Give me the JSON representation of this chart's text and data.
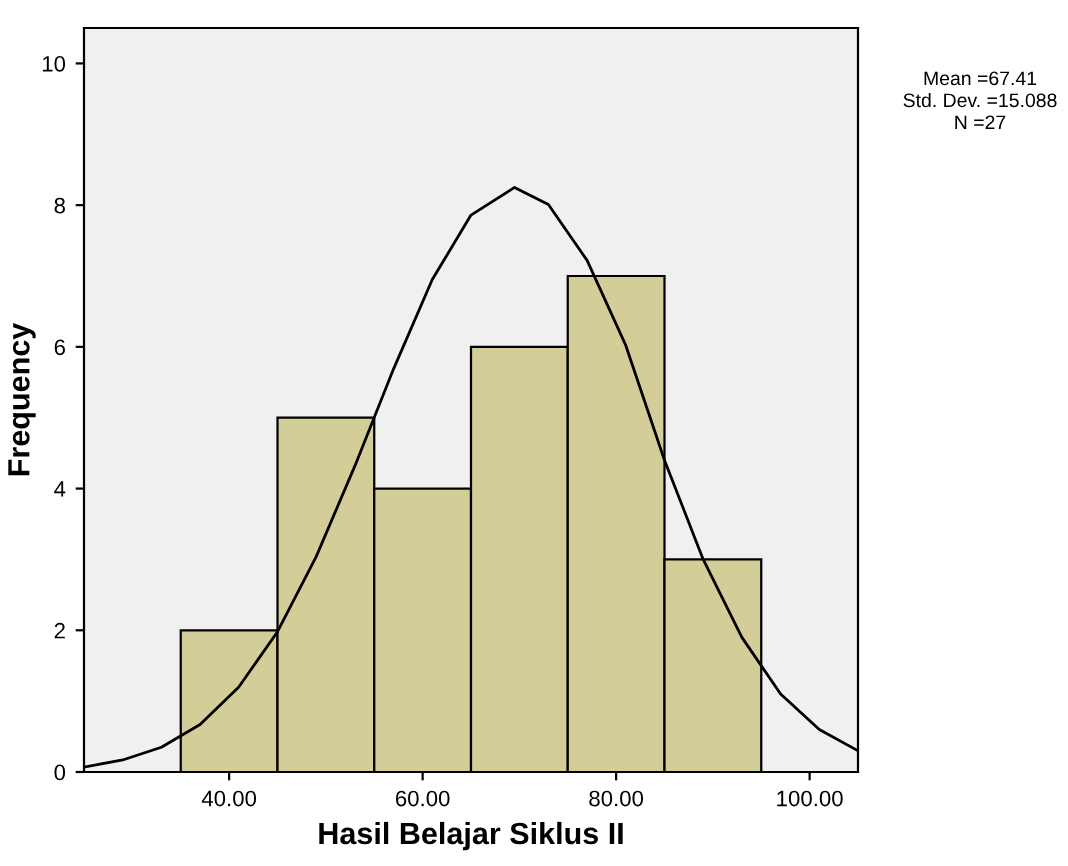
{
  "chart_data": {
    "type": "histogram",
    "xlabel": "Hasil Belajar Siklus II",
    "ylabel": "Frequency",
    "bins": [
      35,
      45,
      55,
      65,
      75,
      85,
      95
    ],
    "values": [
      2,
      5,
      4,
      6,
      7,
      3
    ],
    "color": "#d3ce97",
    "series": [
      {
        "type": "line",
        "color": "#000000",
        "x": [
          25,
          29,
          33,
          37,
          41,
          45,
          49,
          53,
          57,
          61,
          65,
          69.5,
          73,
          77,
          81,
          85,
          89,
          93,
          97,
          101,
          105
        ],
        "values": [
          0.07,
          0.17,
          0.35,
          0.67,
          1.2,
          1.98,
          3.04,
          4.32,
          5.69,
          6.95,
          7.86,
          8.25,
          8.01,
          7.22,
          6.02,
          4.4,
          3.0,
          1.9,
          1.1,
          0.6,
          0.3
        ]
      }
    ],
    "xlim": [
      25,
      105
    ],
    "ylim": [
      0,
      10.5
    ],
    "xticks": [
      {
        "value": 40,
        "label": "40.00"
      },
      {
        "value": 60,
        "label": "60.00"
      },
      {
        "value": 80,
        "label": "80.00"
      },
      {
        "value": 100,
        "label": "100.00"
      }
    ],
    "yticks": [
      0,
      2,
      4,
      6,
      8,
      10
    ],
    "grid": false,
    "legend": false,
    "annotations": [
      "Mean =67.41",
      "Std. Dev. =15.088",
      "N =27"
    ]
  }
}
